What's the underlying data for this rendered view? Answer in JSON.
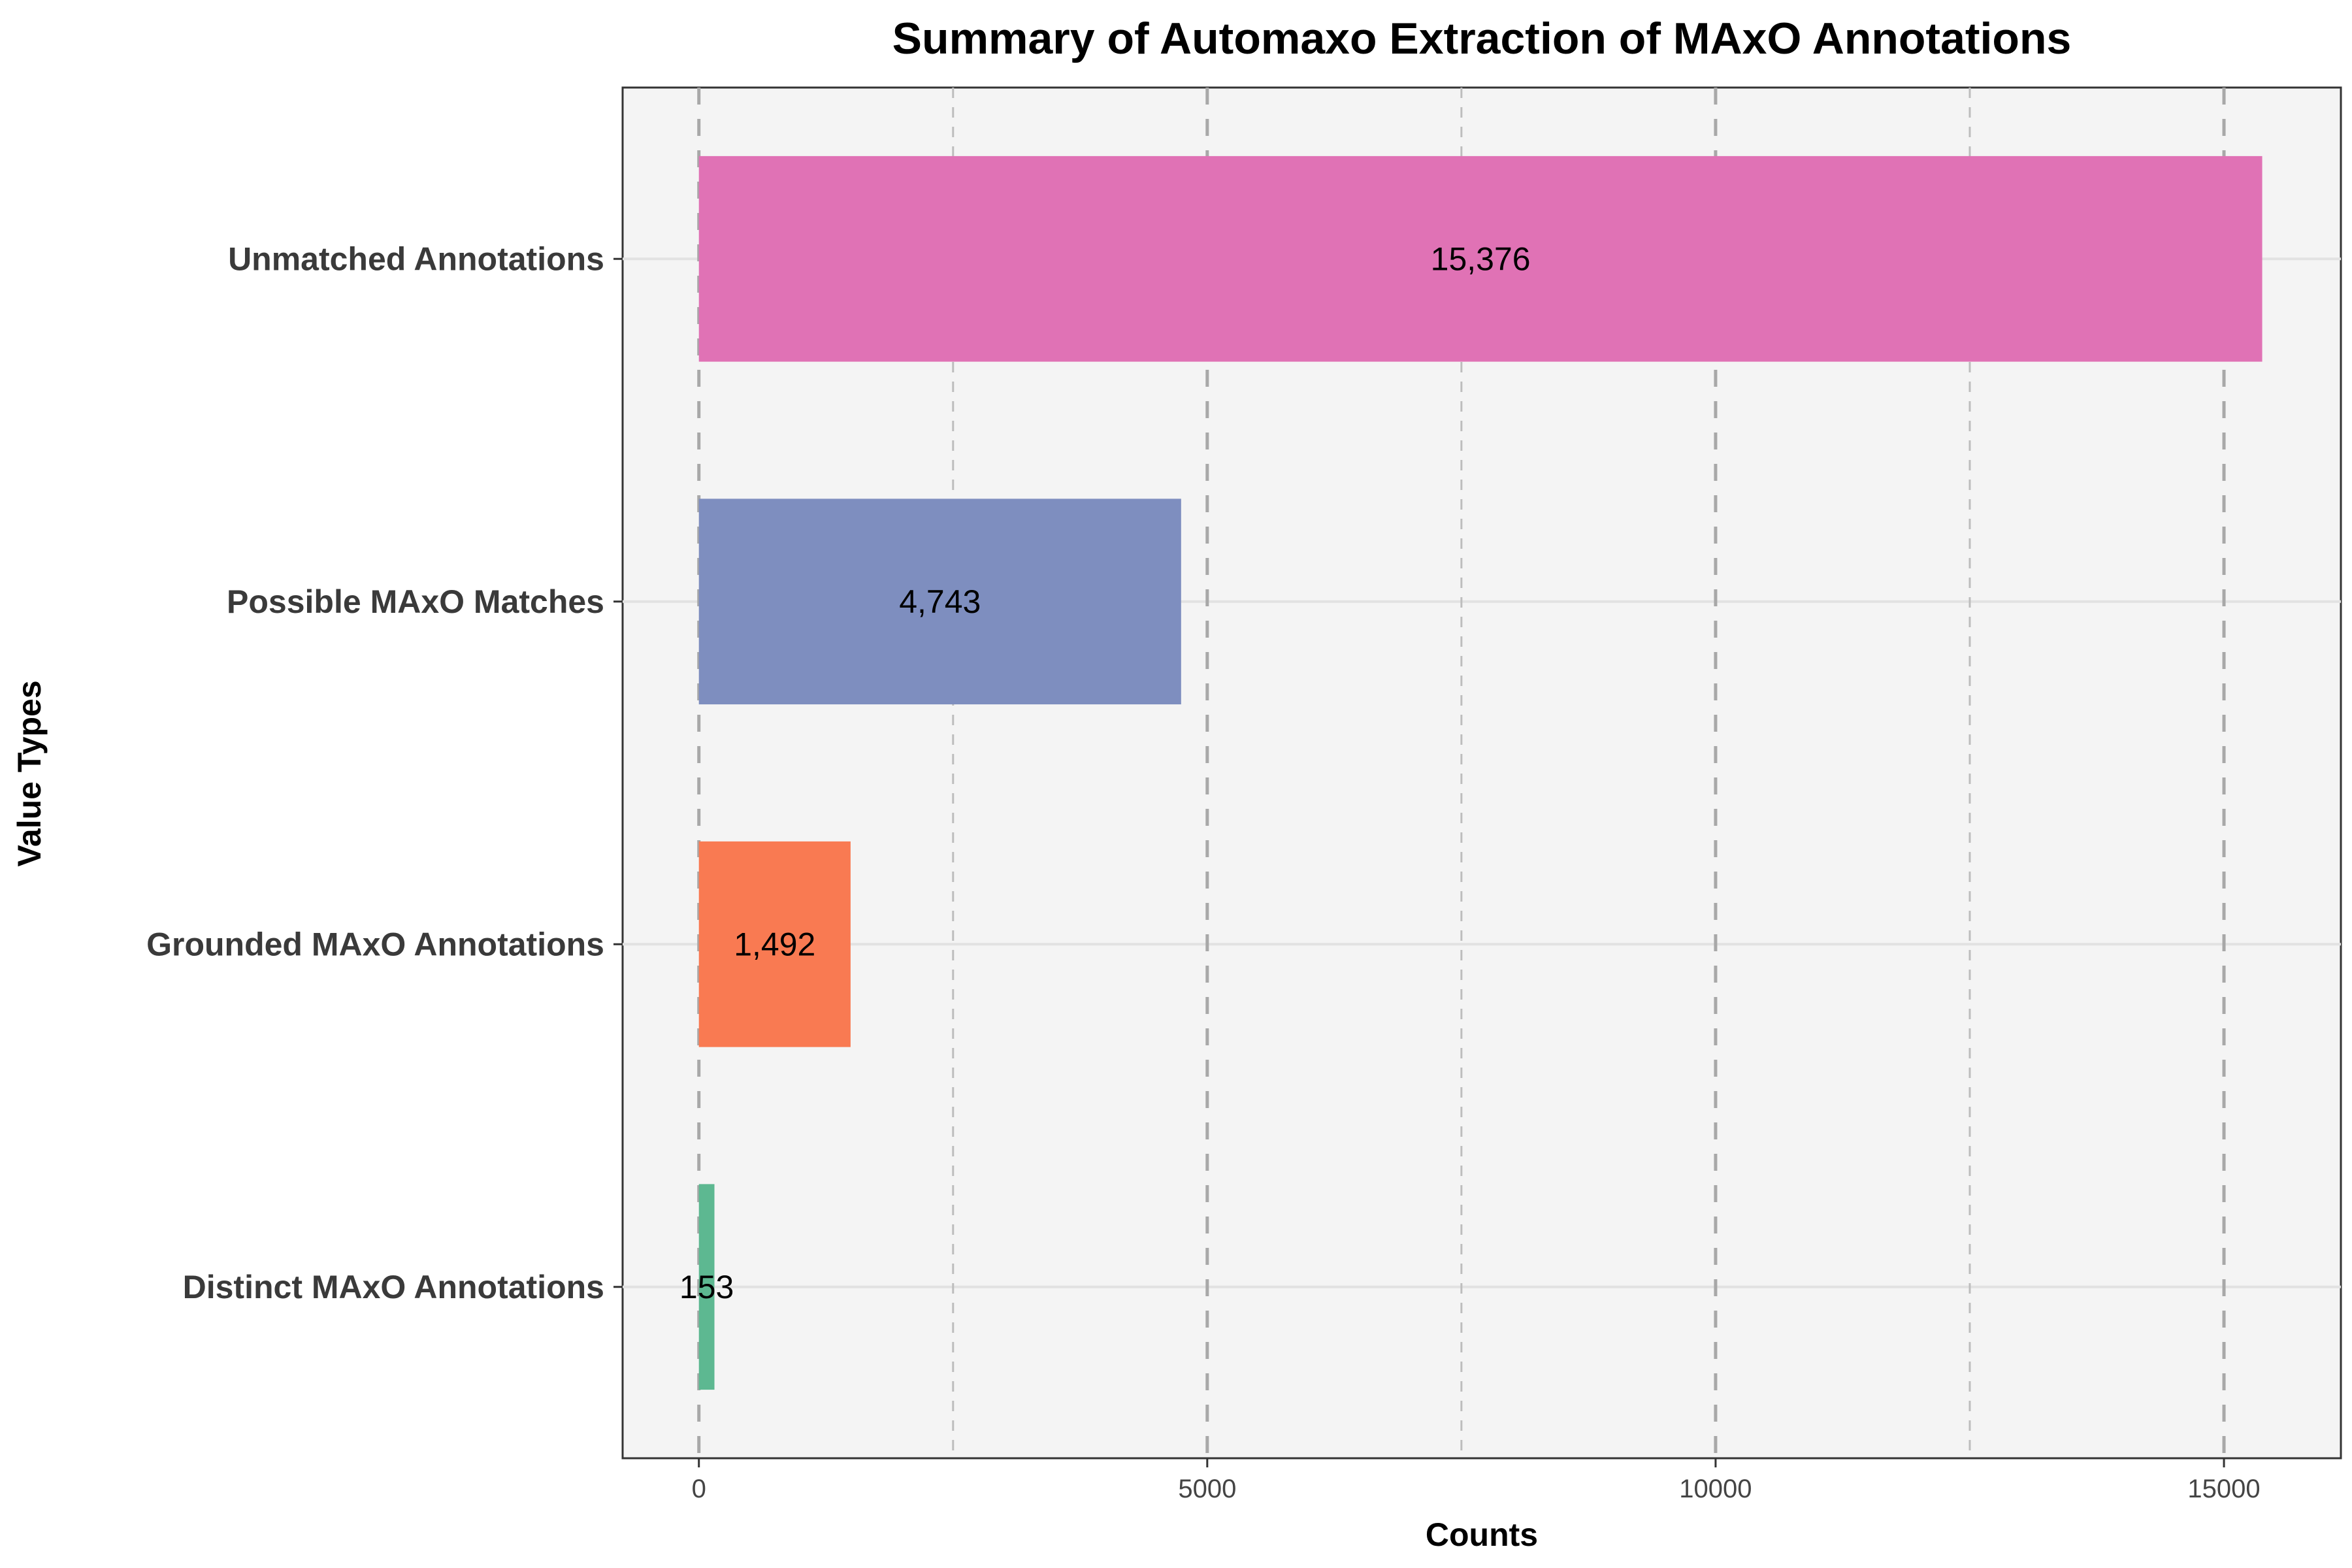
{
  "chart_data": {
    "type": "bar",
    "orientation": "horizontal",
    "title": "Summary of Automaxo Extraction of MAxO Annotations",
    "xlabel": "Counts",
    "ylabel": "Value Types",
    "categories": [
      "Unmatched Annotations",
      "Possible MAxO Matches",
      "Grounded MAxO Annotations",
      "Distinct MAxO Annotations"
    ],
    "values": [
      15376,
      4743,
      1492,
      153
    ],
    "value_labels": [
      "15,376",
      "4,743",
      "1,492",
      "153"
    ],
    "colors": [
      "#e072b5",
      "#7e8ebf",
      "#f97a52",
      "#5db891"
    ],
    "xlim": [
      -750,
      16150
    ],
    "xticks": [
      0,
      5000,
      10000,
      15000
    ],
    "xtick_labels": [
      "0",
      "5000",
      "10000",
      "15000"
    ],
    "grid": true,
    "grid_style": "dashed vertical",
    "background": "#f4f4f4",
    "legend": "none"
  }
}
